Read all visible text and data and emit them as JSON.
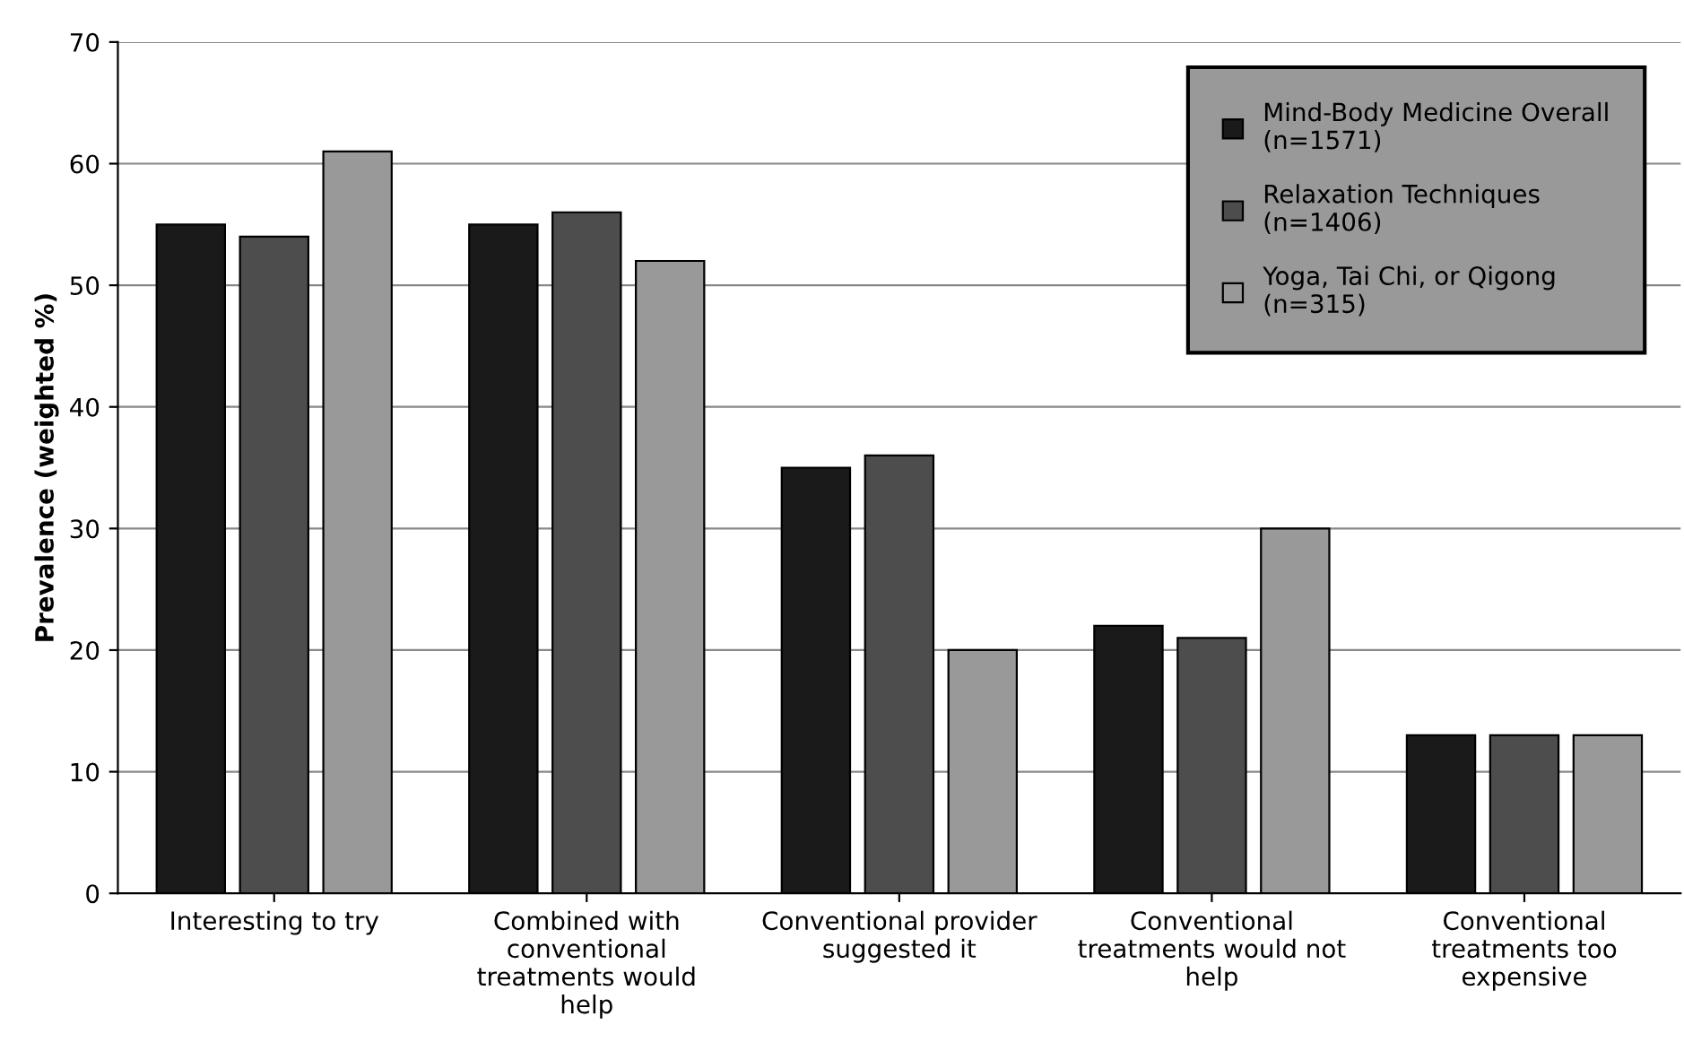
{
  "chart_data": {
    "type": "bar",
    "ylabel": "Prevalence (weighted %)",
    "categories": [
      "Interesting to try",
      "Combined with\nconventional\ntreatments would\nhelp",
      "Conventional provider\nsuggested it",
      "Conventional\ntreatments would not\nhelp",
      "Conventional\ntreatments too\nexpensive"
    ],
    "series": [
      {
        "name": "Mind-Body Medicine Overall\n(n=1571)",
        "color": "#1a1a1a",
        "values": [
          55,
          55,
          35,
          22,
          13
        ]
      },
      {
        "name": "Relaxation Techniques\n(n=1406)",
        "color": "#4d4d4d",
        "values": [
          54,
          56,
          36,
          21,
          13
        ]
      },
      {
        "name": "Yoga, Tai Chi, or Qigong\n(n=315)",
        "color": "#999999",
        "values": [
          61,
          52,
          20,
          30,
          13
        ]
      }
    ],
    "ylim": [
      0,
      70
    ],
    "yticks": [
      0,
      10,
      20,
      30,
      40,
      50,
      60,
      70
    ],
    "grid": "y",
    "legend": "top right"
  }
}
